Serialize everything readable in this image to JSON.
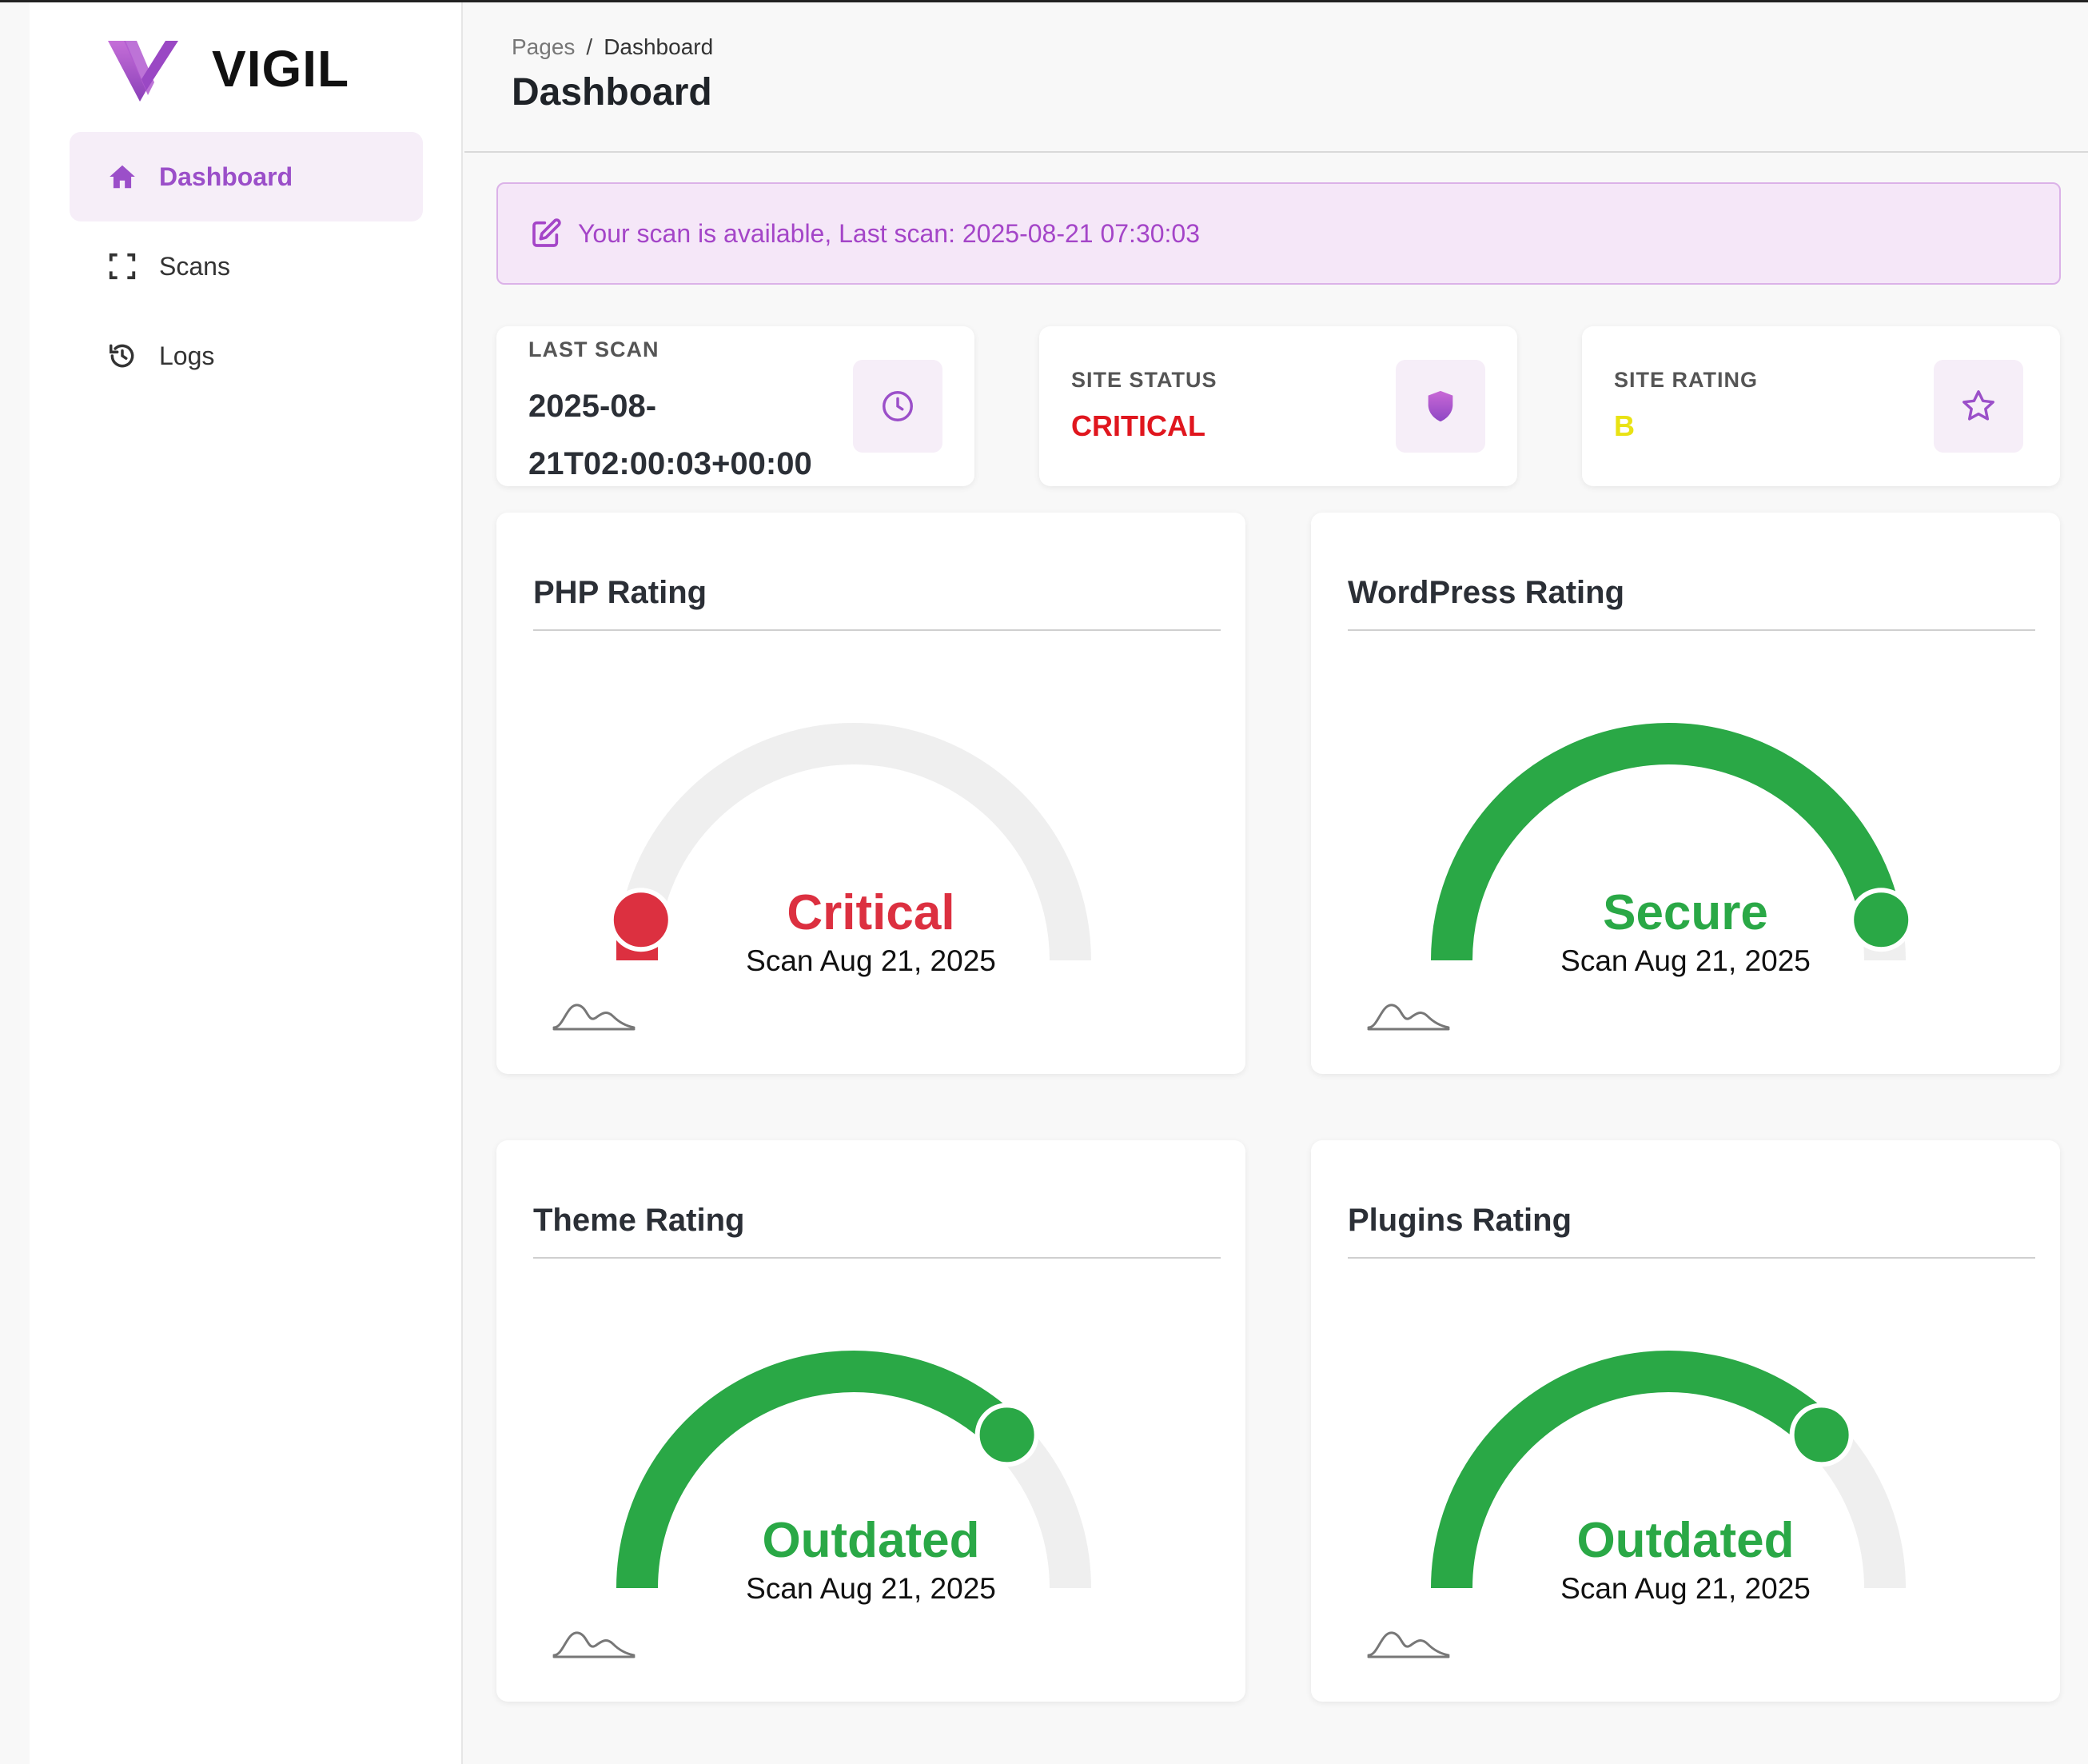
{
  "app": {
    "name": "VIGIL"
  },
  "sidebar": {
    "items": [
      {
        "label": "Dashboard",
        "icon": "home-icon",
        "active": true
      },
      {
        "label": "Scans",
        "icon": "scan-frame-icon",
        "active": false
      },
      {
        "label": "Logs",
        "icon": "history-icon",
        "active": false
      }
    ]
  },
  "header": {
    "breadcrumb": {
      "root": "Pages",
      "separator": "/",
      "current": "Dashboard"
    },
    "title": "Dashboard"
  },
  "alert": {
    "icon": "edit-icon",
    "message": "Your scan is available, Last scan: 2025-08-21 07:30:03"
  },
  "stats": {
    "last_scan": {
      "label": "LAST SCAN",
      "value_line1": "2025-08-",
      "value_line2": "21T02:00:03+00:00",
      "icon": "clock-icon"
    },
    "site_status": {
      "label": "SITE STATUS",
      "value": "CRITICAL",
      "color": "#e0161e",
      "icon": "shield-icon"
    },
    "site_rating": {
      "label": "SITE RATING",
      "value": "B",
      "color": "#e9e213",
      "icon": "star-icon"
    }
  },
  "ratings": [
    {
      "title": "PHP Rating",
      "status": "Critical",
      "date": "Scan Aug 21, 2025",
      "color": "#dc3040",
      "level": 0.0
    },
    {
      "title": "WordPress Rating",
      "status": "Secure",
      "date": "Scan Aug 21, 2025",
      "color": "#2aa846",
      "level": 0.94
    },
    {
      "title": "Theme Rating",
      "status": "Outdated",
      "date": "Scan Aug 21, 2025",
      "color": "#2aa846",
      "level": 0.75
    },
    {
      "title": "Plugins Rating",
      "status": "Outdated",
      "date": "Scan Aug 21, 2025",
      "color": "#2aa846",
      "level": 0.75
    }
  ],
  "colors": {
    "accent": "#9b4fc9",
    "gauge_track": "#efefef"
  }
}
